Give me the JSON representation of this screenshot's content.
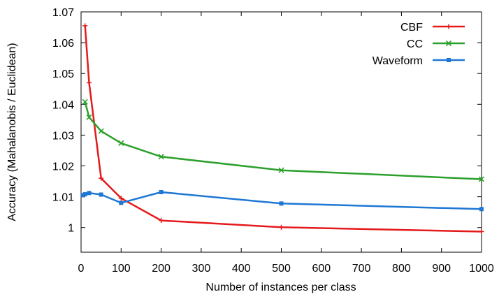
{
  "chart_data": {
    "type": "line",
    "xlabel": "Number of instances per class",
    "ylabel": "Accuracy  (Mahalanobis / Euclidean)",
    "xlim": [
      0,
      1000
    ],
    "ylim": [
      0.992,
      1.07
    ],
    "xticks": [
      "0",
      "100",
      "200",
      "300",
      "400",
      "500",
      "600",
      "700",
      "800",
      "900",
      "1000"
    ],
    "yticks": [
      "1",
      "1.01",
      "1.02",
      "1.03",
      "1.04",
      "1.05",
      "1.06",
      "1.07"
    ],
    "legend_position": "top-right",
    "grid": false,
    "series": [
      {
        "name": "CBF",
        "color": "#e41a1c",
        "marker": "plus",
        "x": [
          10,
          20,
          50,
          100,
          200,
          500,
          1000
        ],
        "y": [
          1.0655,
          1.047,
          1.016,
          1.0095,
          1.0023,
          1.0001,
          0.9987
        ]
      },
      {
        "name": "CC",
        "color": "#2ca02c",
        "marker": "x",
        "x": [
          10,
          20,
          50,
          100,
          200,
          500,
          1000
        ],
        "y": [
          1.0408,
          1.0358,
          1.0313,
          1.0274,
          1.023,
          1.0186,
          1.0157
        ]
      },
      {
        "name": "Waveform",
        "color": "#1f77d4",
        "marker": "square",
        "x": [
          5,
          10,
          20,
          50,
          100,
          200,
          500,
          1000
        ],
        "y": [
          1.0105,
          1.0108,
          1.0112,
          1.0107,
          1.008,
          1.0115,
          1.0078,
          1.006
        ]
      }
    ]
  }
}
